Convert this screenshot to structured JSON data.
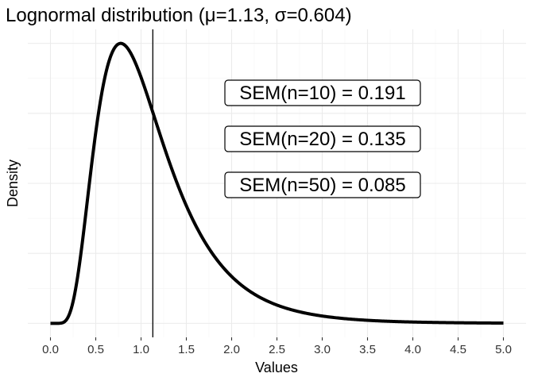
{
  "chart_data": {
    "type": "line",
    "title": "Lognormal distribution (μ=1.13, σ=0.604)",
    "xlabel": "Values",
    "ylabel": "Density",
    "xlim": [
      -0.25,
      5.25
    ],
    "x_ticks": [
      "0.0",
      "0.5",
      "1.0",
      "1.5",
      "2.0",
      "2.5",
      "3.0",
      "3.5",
      "4.0",
      "4.5",
      "5.0"
    ],
    "y_tick_labels_shown": false,
    "grid": true,
    "legend": "none",
    "distribution": {
      "family": "lognormal",
      "mean": 1.13,
      "sd": 0.604,
      "x_range": [
        0,
        5
      ]
    },
    "vertical_line": {
      "x": 1.13
    },
    "annotations": [
      {
        "text": "SEM(n=10) = 0.191"
      },
      {
        "text": "SEM(n=20) = 0.135"
      },
      {
        "text": "SEM(n=50) = 0.085"
      }
    ]
  }
}
